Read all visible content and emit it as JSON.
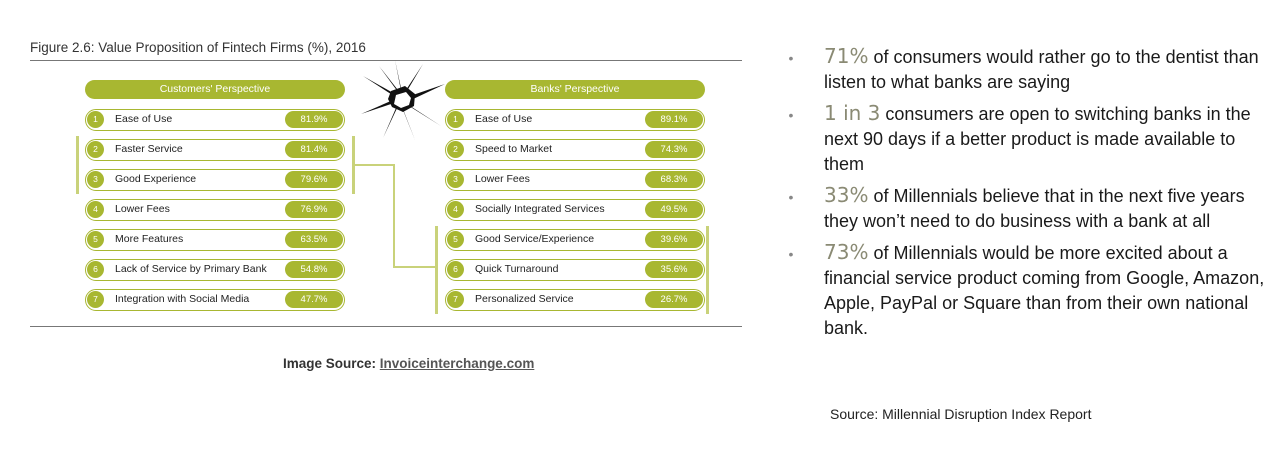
{
  "figure": {
    "title": "Figure 2.6: Value Proposition of Fintech Firms (%), 2016",
    "customers": {
      "header": "Customers' Perspective",
      "rows": [
        {
          "num": "1",
          "label": "Ease of Use",
          "value": "81.9%"
        },
        {
          "num": "2",
          "label": "Faster Service",
          "value": "81.4%"
        },
        {
          "num": "3",
          "label": "Good Experience",
          "value": "79.6%"
        },
        {
          "num": "4",
          "label": "Lower Fees",
          "value": "76.9%"
        },
        {
          "num": "5",
          "label": "More Features",
          "value": "63.5%"
        },
        {
          "num": "6",
          "label": "Lack of Service by Primary Bank",
          "value": "54.8%"
        },
        {
          "num": "7",
          "label": "Integration with Social Media",
          "value": "47.7%"
        }
      ]
    },
    "banks": {
      "header": "Banks' Perspective",
      "rows": [
        {
          "num": "1",
          "label": "Ease of Use",
          "value": "89.1%"
        },
        {
          "num": "2",
          "label": "Speed to Market",
          "value": "74.3%"
        },
        {
          "num": "3",
          "label": "Lower Fees",
          "value": "68.3%"
        },
        {
          "num": "4",
          "label": "Socially Integrated Services",
          "value": "49.5%"
        },
        {
          "num": "5",
          "label": "Good Service/Experience",
          "value": "39.6%"
        },
        {
          "num": "6",
          "label": "Quick Turnaround",
          "value": "35.6%"
        },
        {
          "num": "7",
          "label": "Personalized Service",
          "value": "26.7%"
        }
      ]
    },
    "accent_color": "#a8b731"
  },
  "image_source": {
    "label": "Image Source: ",
    "link": "Invoiceinterchange.com"
  },
  "bullets": [
    {
      "stat": "71%",
      "text": " of consumers would rather go to the dentist than listen to what banks are saying"
    },
    {
      "stat": "1 in 3",
      "text": " consumers are open to switching banks in the next 90 days if a better product is made available to them"
    },
    {
      "stat": "33%",
      "text": " of Millennials believe that in the next five years they won’t need to do business with a bank at all"
    },
    {
      "stat": "73%",
      "text": " of Millennials would be more excited about a financial service product coming from Google, Amazon, Apple, PayPal or Square than from their own national bank."
    }
  ],
  "bullet_glyph": "•",
  "source_note": "Source: Millennial Disruption Index Report"
}
